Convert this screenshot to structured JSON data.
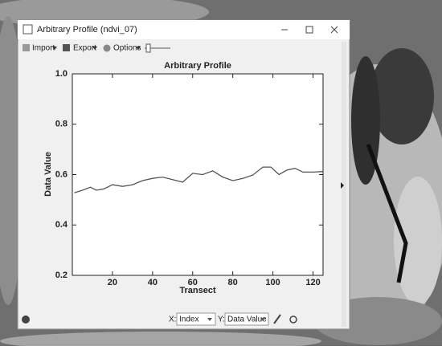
{
  "window": {
    "title": "Arbitrary Profile (ndvi_07)"
  },
  "toolbar": [
    "Import",
    "Export",
    "Options"
  ],
  "footer": {
    "x_label": "X:",
    "x_select": "Index",
    "y_label": "Y:",
    "y_select": "Data Value"
  },
  "chart_data": {
    "type": "line",
    "title": "Arbitrary Profile",
    "x_label": "Transect",
    "y_label": "Data Value",
    "x": [
      1,
      5,
      9,
      12,
      16,
      20,
      25,
      30,
      35,
      40,
      45,
      50,
      55,
      60,
      65,
      70,
      75,
      80,
      85,
      90,
      95,
      99,
      103,
      107,
      111,
      115,
      120,
      125
    ],
    "values": [
      0.528,
      0.538,
      0.55,
      0.538,
      0.544,
      0.56,
      0.553,
      0.56,
      0.576,
      0.585,
      0.59,
      0.58,
      0.57,
      0.605,
      0.6,
      0.615,
      0.59,
      0.576,
      0.585,
      0.598,
      0.63,
      0.63,
      0.6,
      0.618,
      0.625,
      0.61,
      0.61,
      0.612
    ],
    "color": "#555555",
    "xlim": [
      0,
      125
    ],
    "xticks": [
      20,
      40,
      60,
      80,
      100,
      120
    ],
    "ylim": [
      0.2,
      1
    ],
    "yticks": [
      0.2,
      0.4,
      0.6,
      0.8,
      {
        "value": 1,
        "label": "1.0"
      }
    ]
  }
}
